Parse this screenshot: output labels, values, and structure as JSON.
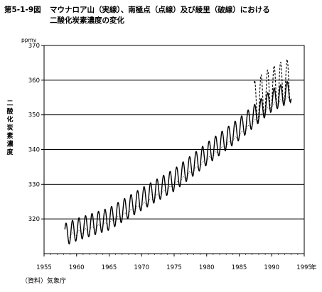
{
  "figure": {
    "number": "第5-1-9図",
    "title_line1": "マウナロア山（実線）、南極点（点線）及び綾里（破線）における",
    "title_line2": "二酸化炭素濃度の変化",
    "source": "（資料）気象庁"
  },
  "chart_data": {
    "type": "line",
    "title": "マウナロア山（実線）、南極点（点線）及び綾里（破線）における二酸化炭素濃度の変化",
    "ylabel": "二酸化炭素濃度",
    "yunit": "ppmv",
    "xunit": "年",
    "xlim": [
      1955,
      1995
    ],
    "ylim": [
      310,
      370
    ],
    "xticks": [
      1955,
      1960,
      1965,
      1970,
      1975,
      1980,
      1985,
      1990,
      1995
    ],
    "yticks": [
      320,
      330,
      340,
      350,
      360,
      370
    ],
    "grid": "horizontal",
    "series": [
      {
        "name": "マウナロア山（実線）",
        "line_style": "solid",
        "start_year": 1958.2,
        "end_year": 1993.0,
        "seasonal_amplitude_ppmv": 3.2,
        "trend_x": [
          1958,
          1960,
          1965,
          1970,
          1975,
          1980,
          1985,
          1990,
          1993
        ],
        "trend_y": [
          315.3,
          316.9,
          320.0,
          325.7,
          331.2,
          338.7,
          345.9,
          354.2,
          357.0
        ]
      },
      {
        "name": "南極点（点線）",
        "line_style": "dotted",
        "start_year": 1958.9,
        "end_year": 1993.0,
        "seasonal_amplitude_ppmv": 0.6,
        "trend_x": [
          1958,
          1960,
          1965,
          1970,
          1975,
          1980,
          1985,
          1990,
          1993
        ],
        "trend_y": [
          314.5,
          315.8,
          318.8,
          323.8,
          329.6,
          336.8,
          344.0,
          352.5,
          355.2
        ]
      },
      {
        "name": "綾里（破線）",
        "line_style": "dashed",
        "start_year": 1987.3,
        "end_year": 1993.0,
        "seasonal_amplitude_ppmv": 6.5,
        "trend_x": [
          1987,
          1988,
          1989,
          1990,
          1991,
          1992,
          1993
        ],
        "trend_y": [
          352.8,
          354.5,
          356.0,
          357.2,
          358.4,
          359.2,
          360.0
        ]
      }
    ]
  }
}
